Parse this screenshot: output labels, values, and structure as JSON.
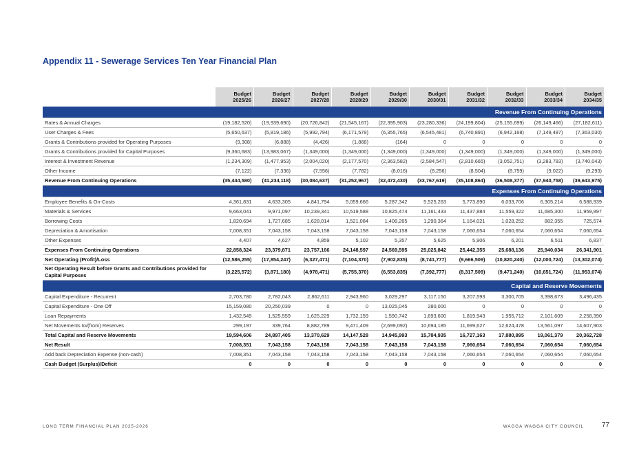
{
  "title": "Appendix 11 - Sewerage Services Ten Year Financial Plan",
  "columns": [
    [
      "Budget",
      "2025/26"
    ],
    [
      "Budget",
      "2026/27"
    ],
    [
      "Budget",
      "2027/28"
    ],
    [
      "Budget",
      "2028/29"
    ],
    [
      "Budget",
      "2029/30"
    ],
    [
      "Budget",
      "2030/31"
    ],
    [
      "Budget",
      "2031/32"
    ],
    [
      "Budget",
      "2032/33"
    ],
    [
      "Budget",
      "2033/34"
    ],
    [
      "Budget",
      "2034/35"
    ]
  ],
  "sections": [
    {
      "title": "Revenue From Continuing Operations",
      "rows": [
        {
          "label": "Rates & Annual Charges",
          "bold": false,
          "values": [
            "(19,182,520)",
            "(19,939,690)",
            "(20,726,842)",
            "(21,545,167)",
            "(22,395,903)",
            "(23,280,336)",
            "(24,199,804)",
            "(25,155,699)",
            "(26,149,466)",
            "(27,182,611)"
          ]
        },
        {
          "label": "User Charges & Fees",
          "bold": false,
          "values": [
            "(5,650,637)",
            "(5,819,186)",
            "(5,992,794)",
            "(6,171,579)",
            "(6,355,765)",
            "(6,545,481)",
            "(6,740,891)",
            "(6,942,168)",
            "(7,149,487)",
            "(7,363,030)"
          ]
        },
        {
          "label": "Grants & Contributions provided for Operating Purposes",
          "bold": false,
          "values": [
            "(9,308)",
            "(6,888)",
            "(4,426)",
            "(1,868)",
            "(164)",
            "0",
            "0",
            "0",
            "0",
            "0"
          ]
        },
        {
          "label": "Grants & Contributions provided for Capital Purposes",
          "bold": false,
          "values": [
            "(9,360,683)",
            "(13,983,067)",
            "(1,349,000)",
            "(1,349,000)",
            "(1,349,000)",
            "(1,349,000)",
            "(1,349,000)",
            "(1,349,000)",
            "(1,349,000)",
            "(1,349,000)"
          ]
        },
        {
          "label": "Interest & Investment Revenue",
          "bold": false,
          "values": [
            "(1,234,309)",
            "(1,477,953)",
            "(2,004,020)",
            "(2,177,570)",
            "(2,363,582)",
            "(2,584,547)",
            "(2,810,665)",
            "(3,052,751)",
            "(3,283,783)",
            "(3,740,043)"
          ]
        },
        {
          "label": "Other Income",
          "bold": false,
          "values": [
            "(7,122)",
            "(7,336)",
            "(7,556)",
            "(7,782)",
            "(8,016)",
            "(8,256)",
            "(8,504)",
            "(8,759)",
            "(9,022)",
            "(9,293)"
          ]
        },
        {
          "label": "Revenue From Continuing Operations",
          "bold": true,
          "values": [
            "(35,444,580)",
            "(41,234,118)",
            "(30,084,637)",
            "(31,252,967)",
            "(32,472,430)",
            "(33,767,619)",
            "(35,108,864)",
            "(36,508,377)",
            "(37,940,758)",
            "(39,643,975)"
          ]
        }
      ]
    },
    {
      "title": "Expenses From Continuing Operations",
      "rows": [
        {
          "label": "Employee Benefits & On-Costs",
          "bold": false,
          "values": [
            "4,361,831",
            "4,633,305",
            "4,841,794",
            "5,059,666",
            "5,287,342",
            "5,525,263",
            "5,773,890",
            "6,033,706",
            "6,305,214",
            "6,588,939"
          ]
        },
        {
          "label": "Materials & Services",
          "bold": false,
          "values": [
            "9,663,041",
            "9,971,097",
            "10,239,341",
            "10,519,588",
            "10,825,474",
            "11,161,433",
            "11,437,884",
            "11,559,322",
            "11,685,300",
            "11,959,897"
          ]
        },
        {
          "label": "Borrowing Costs",
          "bold": false,
          "values": [
            "1,820,694",
            "1,727,685",
            "1,628,014",
            "1,521,084",
            "1,408,265",
            "1,290,364",
            "1,164,021",
            "1,028,252",
            "882,355",
            "725,574"
          ]
        },
        {
          "label": "Depreciation & Amortisation",
          "bold": false,
          "values": [
            "7,008,351",
            "7,043,158",
            "7,043,158",
            "7,043,158",
            "7,043,158",
            "7,043,158",
            "7,060,654",
            "7,060,654",
            "7,060,654",
            "7,060,654"
          ]
        },
        {
          "label": "Other Expenses",
          "bold": false,
          "values": [
            "4,407",
            "4,627",
            "4,859",
            "5,102",
            "5,357",
            "5,625",
            "5,906",
            "6,201",
            "6,511",
            "6,837"
          ]
        },
        {
          "label": "Expenses From Continuing Operations",
          "bold": true,
          "values": [
            "22,858,324",
            "23,379,871",
            "23,757,166",
            "24,148,597",
            "24,569,595",
            "25,025,842",
            "25,442,355",
            "25,688,136",
            "25,940,034",
            "26,341,901"
          ]
        },
        {
          "label": "Net Operating (Profit)/Loss",
          "bold": true,
          "values": [
            "(12,586,255)",
            "(17,854,247)",
            "(6,327,471)",
            "(7,104,370)",
            "(7,902,835)",
            "(8,741,777)",
            "(9,666,509)",
            "(10,820,240)",
            "(12,000,724)",
            "(13,302,074)"
          ]
        },
        {
          "label": "Net Operating Result before Grants and Contributions provided for Capital Purposes",
          "bold": true,
          "values": [
            "(3,225,572)",
            "(3,871,180)",
            "(4,978,471)",
            "(5,755,370)",
            "(6,553,835)",
            "(7,392,777)",
            "(8,317,509)",
            "(9,471,240)",
            "(10,651,724)",
            "(11,953,074)"
          ]
        }
      ]
    },
    {
      "title": "Capital and Reserve Movements",
      "rows": [
        {
          "label": "Capital Expenditure - Recurrent",
          "bold": false,
          "values": [
            "2,703,780",
            "2,782,043",
            "2,862,611",
            "2,943,960",
            "3,029,297",
            "3,117,150",
            "3,207,593",
            "3,300,705",
            "3,398,673",
            "3,496,435"
          ]
        },
        {
          "label": "Capital Expenditure - One Off",
          "bold": false,
          "values": [
            "15,159,080",
            "20,250,039",
            "0",
            "0",
            "13,025,045",
            "280,000",
            "0",
            "0",
            "0",
            "0"
          ]
        },
        {
          "label": "Loan Repayments",
          "bold": false,
          "values": [
            "1,432,549",
            "1,525,559",
            "1,625,229",
            "1,732,159",
            "1,590,742",
            "1,693,600",
            "1,819,943",
            "1,955,712",
            "2,101,609",
            "2,258,390"
          ]
        },
        {
          "label": "Net Movements to/(from) Reserves",
          "bold": false,
          "values": [
            "299,197",
            "339,764",
            "8,882,789",
            "9,471,409",
            "(2,699,092)",
            "10,694,185",
            "11,699,627",
            "12,624,478",
            "13,561,097",
            "14,607,903"
          ]
        },
        {
          "label": "Total Capital and Reserve Movements",
          "bold": true,
          "values": [
            "19,594,606",
            "24,897,405",
            "13,370,629",
            "14,147,528",
            "14,945,993",
            "15,784,935",
            "16,727,163",
            "17,880,895",
            "19,061,379",
            "20,362,728"
          ]
        },
        {
          "label": "Net Result",
          "bold": true,
          "values": [
            "7,008,351",
            "7,043,158",
            "7,043,158",
            "7,043,158",
            "7,043,158",
            "7,043,158",
            "7,060,654",
            "7,060,654",
            "7,060,654",
            "7,060,654"
          ]
        },
        {
          "label": "Add back Depreciation Expense (non-cash)",
          "bold": false,
          "values": [
            "7,008,351",
            "7,043,158",
            "7,043,158",
            "7,043,158",
            "7,043,158",
            "7,043,158",
            "7,060,654",
            "7,060,654",
            "7,060,654",
            "7,060,654"
          ]
        },
        {
          "label": "Cash Budget (Surplus)/Deficit",
          "bold": true,
          "values": [
            "0",
            "0",
            "0",
            "0",
            "0",
            "0",
            "0",
            "0",
            "0",
            "0"
          ]
        }
      ]
    }
  ],
  "footer": {
    "left": "LONG TERM FINANCIAL PLAN 2025-2026",
    "right": "WAGGA WAGGA CITY COUNCIL",
    "page": "77"
  }
}
